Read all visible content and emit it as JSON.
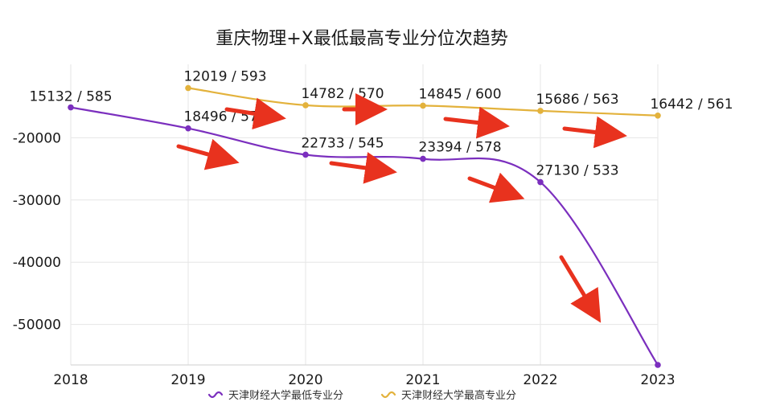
{
  "chart_data": {
    "type": "line",
    "title": "重庆物理+X最低最高专业分位次趋势",
    "xlabel": "",
    "ylabel": "",
    "categories": [
      "2018",
      "2019",
      "2020",
      "2021",
      "2022",
      "2023"
    ],
    "y_ticks": [
      "-20000",
      "-30000",
      "-40000",
      "-50000"
    ],
    "y_tick_values": [
      -20000,
      -30000,
      -40000,
      -50000
    ],
    "ylim": [
      -56500,
      -9500
    ],
    "grid": true,
    "legend_position": "bottom-center",
    "series": [
      {
        "name": "天津财经大学最低专业分",
        "color": "#7b2fbe",
        "values": [
          -15132,
          -18496,
          -22733,
          -23394,
          -27130,
          -56500
        ],
        "labels": [
          "15132 / 585",
          "18496 / 573",
          "22733 / 545",
          "23394 / 578",
          "27130 / 533",
          ""
        ]
      },
      {
        "name": "天津财经大学最高专业分",
        "color": "#e3b23c",
        "values": [
          null,
          -12019,
          -14782,
          -14845,
          -15686,
          -16442
        ],
        "labels": [
          "",
          "12019 / 593",
          "14782 / 570",
          "14845 / 600",
          "15686 / 563",
          "16442 / 561"
        ]
      }
    ],
    "annotations": {
      "arrow_color": "#e8321e",
      "description_free": true
    }
  }
}
